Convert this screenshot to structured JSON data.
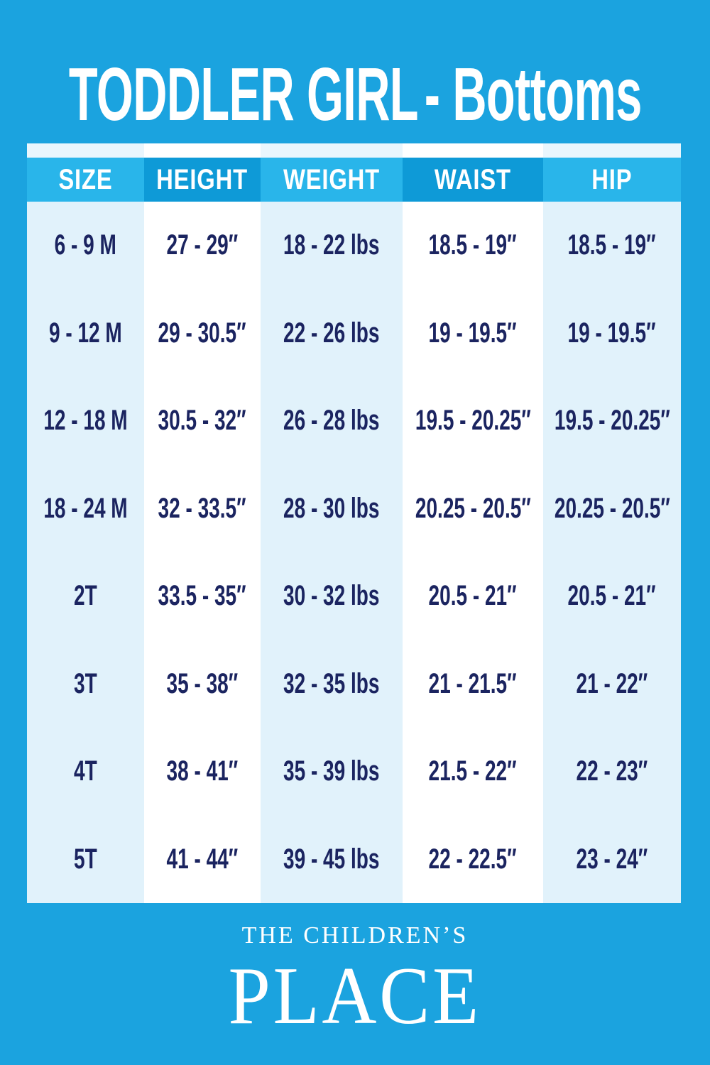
{
  "title": {
    "main": "TODDLER GIRL",
    "sub": "- Bottoms"
  },
  "chart_data": {
    "type": "table",
    "title": "TODDLER GIRL - Bottoms",
    "columns": [
      "SIZE",
      "HEIGHT",
      "WEIGHT",
      "WAIST",
      "HIP"
    ],
    "rows": [
      [
        "6 - 9 M",
        "27 - 29″",
        "18 - 22 lbs",
        "18.5 - 19″",
        "18.5 - 19″"
      ],
      [
        "9 - 12 M",
        "29 - 30.5″",
        "22 - 26 lbs",
        "19 - 19.5″",
        "19 - 19.5″"
      ],
      [
        "12 - 18 M",
        "30.5 - 32″",
        "26 - 28 lbs",
        "19.5 - 20.25″",
        "19.5 - 20.25″"
      ],
      [
        "18 - 24 M",
        "32 - 33.5″",
        "28 - 30 lbs",
        "20.25 - 20.5″",
        "20.25 - 20.5″"
      ],
      [
        "2T",
        "33.5 - 35″",
        "30 - 32 lbs",
        "20.5 - 21″",
        "20.5 - 21″"
      ],
      [
        "3T",
        "35 - 38″",
        "32 - 35 lbs",
        "21 - 21.5″",
        "21 - 22″"
      ],
      [
        "4T",
        "38 - 41″",
        "35 - 39 lbs",
        "21.5 - 22″",
        "22 - 23″"
      ],
      [
        "5T",
        "41 - 44″",
        "39 - 45 lbs",
        "22 - 22.5″",
        "23 - 24″"
      ]
    ]
  },
  "footer": {
    "line1": "THE CHILDREN’S",
    "line2": "PLACE"
  },
  "colors": {
    "bg": "#1BA3DF",
    "header_light": "#29B5EA",
    "header_dark": "#0E9AD7",
    "body_pale": "#E1F2FB",
    "body_white": "#FFFFFF",
    "strip_pale": "#E9F6FD",
    "strip_white": "#FFFFFF",
    "navy": "#1B2460",
    "white": "#FFFFFF"
  }
}
